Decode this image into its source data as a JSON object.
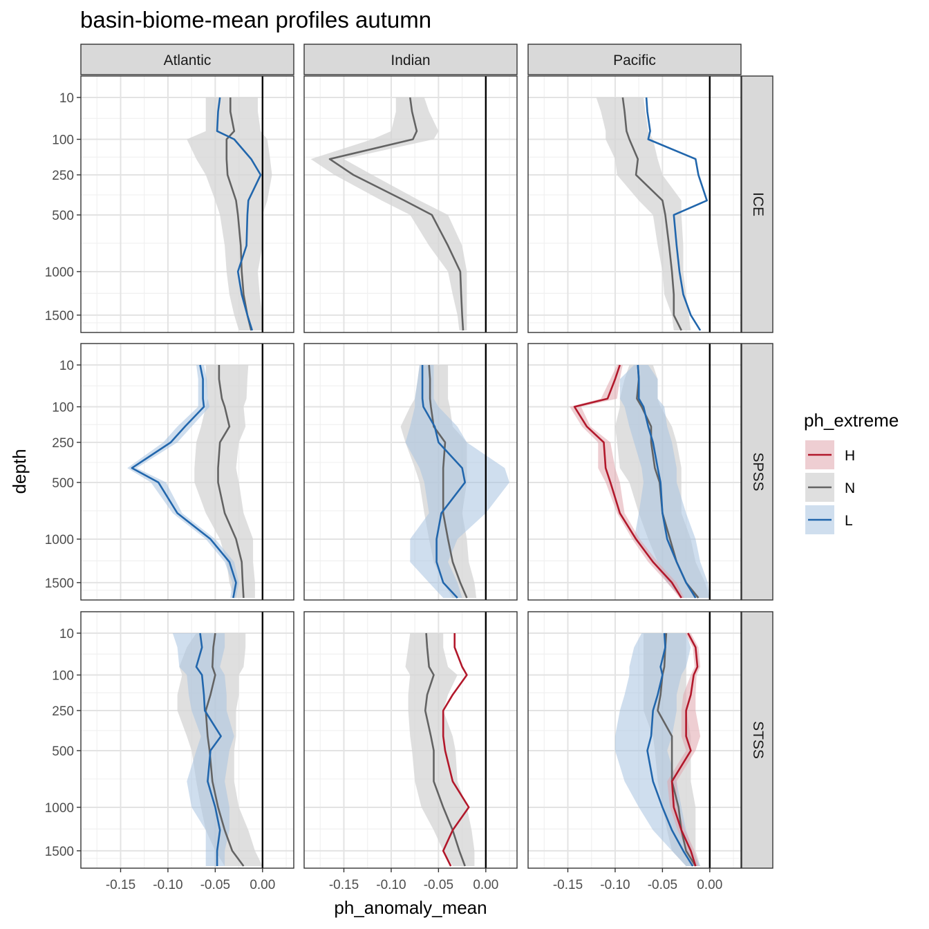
{
  "chart_data": {
    "type": "line",
    "title": "basin-biome-mean profiles autumn",
    "xlabel": "ph_anomaly_mean",
    "ylabel": "depth",
    "y_scale": "reversed-sqrt",
    "ylim": [
      0,
      1700
    ],
    "xlim": [
      -0.192,
      0.033
    ],
    "x_ticks": [
      -0.15,
      -0.1,
      -0.05,
      0.0
    ],
    "x_tick_labels": [
      "-0.15",
      "-0.10",
      "-0.05",
      "0.00"
    ],
    "y_ticks": [
      10,
      100,
      250,
      500,
      1000,
      1500
    ],
    "y_tick_labels": [
      "10",
      "100",
      "250",
      "500",
      "1000",
      "1500"
    ],
    "reference_line_x": 0,
    "columns": [
      "Atlantic",
      "Indian",
      "Pacific"
    ],
    "rows": [
      "ICE",
      "SPSS",
      "STSS"
    ],
    "legend": {
      "title": "ph_extreme",
      "position": "right",
      "items": [
        {
          "key": "H",
          "label": "H",
          "color": "#b2182b"
        },
        {
          "key": "N",
          "label": "N",
          "color": "#636363"
        },
        {
          "key": "L",
          "label": "L",
          "color": "#2166ac"
        }
      ]
    },
    "ribbon_colors": {
      "H": "#e0a6ad",
      "N": "#d4d4d4",
      "L": "#a8c3e0"
    },
    "depths": [
      10,
      30,
      75,
      100,
      175,
      250,
      400,
      500,
      750,
      1000,
      1250,
      1500,
      1700
    ],
    "panels": [
      {
        "col": "Atlantic",
        "row": "ICE",
        "series": [
          {
            "key": "N",
            "values": [
              -0.034,
              -0.034,
              -0.03,
              -0.038,
              -0.038,
              -0.037,
              -0.028,
              -0.026,
              -0.023,
              -0.022,
              -0.02,
              -0.016,
              -0.012
            ],
            "lower": [
              -0.06,
              -0.06,
              -0.06,
              -0.08,
              -0.07,
              -0.06,
              -0.05,
              -0.045,
              -0.04,
              -0.038,
              -0.035,
              -0.03,
              -0.025
            ],
            "upper": [
              -0.005,
              -0.005,
              -0.002,
              0.005,
              0.008,
              0.01,
              0.005,
              0.0,
              0.0,
              -0.005,
              -0.003,
              0.0,
              0.0
            ]
          },
          {
            "key": "L",
            "values": [
              -0.045,
              -0.047,
              -0.048,
              -0.03,
              -0.012,
              -0.002,
              -0.015,
              -0.016,
              -0.017,
              -0.026,
              -0.022,
              -0.016,
              -0.011
            ]
          }
        ]
      },
      {
        "col": "Indian",
        "row": "ICE",
        "series": [
          {
            "key": "N",
            "values": [
              -0.08,
              -0.078,
              -0.073,
              -0.077,
              -0.165,
              -0.14,
              -0.086,
              -0.057,
              -0.04,
              -0.027,
              -0.026,
              -0.025,
              -0.024
            ],
            "lower": [
              -0.095,
              -0.095,
              -0.1,
              -0.12,
              -0.185,
              -0.16,
              -0.11,
              -0.08,
              -0.06,
              -0.04,
              -0.035,
              -0.03,
              -0.028
            ],
            "upper": [
              -0.065,
              -0.06,
              -0.05,
              -0.055,
              -0.15,
              -0.12,
              -0.07,
              -0.04,
              -0.025,
              -0.02,
              -0.02,
              -0.02,
              -0.02
            ]
          }
        ]
      },
      {
        "col": "Pacific",
        "row": "ICE",
        "series": [
          {
            "key": "N",
            "values": [
              -0.092,
              -0.09,
              -0.088,
              -0.085,
              -0.076,
              -0.078,
              -0.05,
              -0.047,
              -0.043,
              -0.04,
              -0.038,
              -0.038,
              -0.03
            ],
            "lower": [
              -0.12,
              -0.115,
              -0.11,
              -0.11,
              -0.1,
              -0.098,
              -0.075,
              -0.06,
              -0.055,
              -0.05,
              -0.048,
              -0.04,
              -0.038
            ],
            "upper": [
              -0.07,
              -0.068,
              -0.065,
              -0.06,
              -0.055,
              -0.05,
              -0.03,
              -0.03,
              -0.028,
              -0.028,
              -0.025,
              -0.022,
              -0.02
            ]
          },
          {
            "key": "L",
            "values": [
              -0.067,
              -0.066,
              -0.063,
              -0.065,
              -0.015,
              -0.012,
              -0.003,
              -0.038,
              -0.035,
              -0.032,
              -0.028,
              -0.02,
              -0.01
            ]
          }
        ]
      },
      {
        "col": "Atlantic",
        "row": "SPSS",
        "series": [
          {
            "key": "N",
            "values": [
              -0.046,
              -0.046,
              -0.043,
              -0.04,
              -0.035,
              -0.045,
              -0.047,
              -0.047,
              -0.04,
              -0.028,
              -0.022,
              -0.021,
              -0.02
            ],
            "lower": [
              -0.06,
              -0.06,
              -0.058,
              -0.06,
              -0.065,
              -0.07,
              -0.072,
              -0.072,
              -0.06,
              -0.045,
              -0.038,
              -0.035,
              -0.03
            ],
            "upper": [
              -0.015,
              -0.016,
              -0.017,
              -0.02,
              -0.018,
              -0.025,
              -0.028,
              -0.025,
              -0.02,
              -0.01,
              -0.01,
              -0.008,
              -0.008
            ]
          },
          {
            "key": "L",
            "values": [
              -0.066,
              -0.063,
              -0.063,
              -0.062,
              -0.082,
              -0.097,
              -0.138,
              -0.11,
              -0.09,
              -0.055,
              -0.035,
              -0.028,
              -0.031
            ],
            "lower": [
              -0.07,
              -0.068,
              -0.068,
              -0.068,
              -0.09,
              -0.105,
              -0.143,
              -0.118,
              -0.095,
              -0.06,
              -0.04,
              -0.032,
              -0.034
            ],
            "upper": [
              -0.062,
              -0.059,
              -0.058,
              -0.056,
              -0.075,
              -0.09,
              -0.133,
              -0.102,
              -0.085,
              -0.05,
              -0.03,
              -0.025,
              -0.028
            ]
          }
        ]
      },
      {
        "col": "Indian",
        "row": "SPSS",
        "series": [
          {
            "key": "N",
            "values": [
              -0.06,
              -0.059,
              -0.059,
              -0.058,
              -0.055,
              -0.043,
              -0.045,
              -0.045,
              -0.045,
              -0.04,
              -0.035,
              -0.027,
              -0.02
            ],
            "lower": [
              -0.07,
              -0.072,
              -0.075,
              -0.08,
              -0.09,
              -0.085,
              -0.075,
              -0.07,
              -0.065,
              -0.06,
              -0.055,
              -0.045,
              -0.035
            ],
            "upper": [
              -0.04,
              -0.04,
              -0.04,
              -0.038,
              -0.035,
              -0.02,
              -0.02,
              -0.02,
              -0.025,
              -0.02,
              -0.018,
              -0.012,
              -0.01
            ]
          },
          {
            "key": "L",
            "values": [
              -0.067,
              -0.067,
              -0.067,
              -0.066,
              -0.054,
              -0.05,
              -0.025,
              -0.022,
              -0.047,
              -0.052,
              -0.052,
              -0.045,
              -0.03
            ],
            "lower": [
              -0.07,
              -0.072,
              -0.075,
              -0.075,
              -0.08,
              -0.085,
              -0.07,
              -0.065,
              -0.06,
              -0.08,
              -0.08,
              -0.06,
              -0.045
            ],
            "upper": [
              -0.055,
              -0.055,
              -0.055,
              -0.05,
              -0.03,
              -0.02,
              0.02,
              0.025,
              0.0,
              -0.03,
              -0.04,
              -0.03,
              -0.025
            ]
          }
        ]
      },
      {
        "col": "Pacific",
        "row": "SPSS",
        "series": [
          {
            "key": "N",
            "values": [
              -0.076,
              -0.075,
              -0.077,
              -0.072,
              -0.062,
              -0.062,
              -0.058,
              -0.053,
              -0.05,
              -0.042,
              -0.035,
              -0.025,
              -0.012
            ],
            "lower": [
              -0.085,
              -0.09,
              -0.095,
              -0.095,
              -0.1,
              -0.098,
              -0.095,
              -0.085,
              -0.075,
              -0.065,
              -0.055,
              -0.045,
              -0.03
            ],
            "upper": [
              -0.06,
              -0.055,
              -0.055,
              -0.052,
              -0.04,
              -0.035,
              -0.03,
              -0.03,
              -0.03,
              -0.02,
              -0.015,
              -0.005,
              0.0
            ]
          },
          {
            "key": "L",
            "values": [
              -0.076,
              -0.075,
              -0.075,
              -0.07,
              -0.065,
              -0.06,
              -0.055,
              -0.052,
              -0.05,
              -0.045,
              -0.035,
              -0.025,
              -0.015
            ],
            "lower": [
              -0.08,
              -0.095,
              -0.095,
              -0.09,
              -0.085,
              -0.08,
              -0.072,
              -0.07,
              -0.075,
              -0.08,
              -0.06,
              -0.045,
              -0.03
            ],
            "upper": [
              -0.065,
              -0.055,
              -0.055,
              -0.048,
              -0.045,
              -0.04,
              -0.035,
              -0.035,
              -0.025,
              -0.015,
              -0.01,
              -0.002,
              0.0
            ]
          },
          {
            "key": "H",
            "values": [
              -0.095,
              -0.1,
              -0.108,
              -0.143,
              -0.13,
              -0.112,
              -0.11,
              -0.105,
              -0.095,
              -0.078,
              -0.06,
              -0.04,
              -0.03
            ],
            "lower": [
              -0.098,
              -0.105,
              -0.115,
              -0.148,
              -0.135,
              -0.118,
              -0.118,
              -0.11,
              -0.098,
              -0.082,
              -0.065,
              -0.045,
              -0.032
            ],
            "upper": [
              -0.092,
              -0.095,
              -0.098,
              -0.136,
              -0.126,
              -0.105,
              -0.1,
              -0.095,
              -0.09,
              -0.074,
              -0.055,
              -0.035,
              -0.027
            ]
          }
        ]
      },
      {
        "col": "Atlantic",
        "row": "STSS",
        "series": [
          {
            "key": "N",
            "values": [
              -0.05,
              -0.052,
              -0.053,
              -0.05,
              -0.055,
              -0.06,
              -0.058,
              -0.056,
              -0.053,
              -0.047,
              -0.04,
              -0.032,
              -0.02
            ],
            "lower": [
              -0.07,
              -0.08,
              -0.088,
              -0.085,
              -0.09,
              -0.09,
              -0.08,
              -0.075,
              -0.07,
              -0.065,
              -0.06,
              -0.05,
              -0.04
            ],
            "upper": [
              -0.018,
              -0.018,
              -0.02,
              -0.025,
              -0.025,
              -0.028,
              -0.028,
              -0.03,
              -0.03,
              -0.025,
              -0.015,
              -0.008,
              0.0
            ]
          },
          {
            "key": "L",
            "values": [
              -0.066,
              -0.064,
              -0.07,
              -0.064,
              -0.062,
              -0.061,
              -0.044,
              -0.055,
              -0.058,
              -0.05,
              -0.045,
              -0.048,
              -0.048
            ],
            "lower": [
              -0.095,
              -0.09,
              -0.088,
              -0.08,
              -0.078,
              -0.075,
              -0.065,
              -0.07,
              -0.08,
              -0.075,
              -0.06,
              -0.06,
              -0.06
            ],
            "upper": [
              -0.04,
              -0.04,
              -0.045,
              -0.04,
              -0.038,
              -0.038,
              -0.03,
              -0.035,
              -0.04,
              -0.035,
              -0.035,
              -0.04,
              -0.04
            ]
          }
        ]
      },
      {
        "col": "Indian",
        "row": "STSS",
        "series": [
          {
            "key": "N",
            "values": [
              -0.063,
              -0.062,
              -0.06,
              -0.055,
              -0.062,
              -0.064,
              -0.058,
              -0.055,
              -0.055,
              -0.045,
              -0.035,
              -0.028,
              -0.022
            ],
            "lower": [
              -0.08,
              -0.082,
              -0.085,
              -0.08,
              -0.082,
              -0.082,
              -0.08,
              -0.078,
              -0.075,
              -0.068,
              -0.055,
              -0.045,
              -0.035
            ],
            "upper": [
              -0.045,
              -0.045,
              -0.04,
              -0.03,
              -0.04,
              -0.045,
              -0.035,
              -0.032,
              -0.03,
              -0.02,
              -0.015,
              -0.012,
              -0.012
            ]
          },
          {
            "key": "H",
            "values": [
              -0.033,
              -0.033,
              -0.025,
              -0.02,
              -0.035,
              -0.045,
              -0.045,
              -0.043,
              -0.035,
              -0.018,
              -0.035,
              -0.045,
              -0.037
            ]
          }
        ]
      },
      {
        "col": "Pacific",
        "row": "STSS",
        "series": [
          {
            "key": "N",
            "values": [
              -0.046,
              -0.047,
              -0.048,
              -0.05,
              -0.052,
              -0.055,
              -0.04,
              -0.04,
              -0.04,
              -0.033,
              -0.03,
              -0.025,
              -0.015
            ],
            "lower": [
              -0.07,
              -0.07,
              -0.07,
              -0.07,
              -0.07,
              -0.07,
              -0.06,
              -0.058,
              -0.055,
              -0.05,
              -0.045,
              -0.04,
              -0.025
            ],
            "upper": [
              -0.025,
              -0.025,
              -0.025,
              -0.025,
              -0.025,
              -0.025,
              -0.02,
              -0.02,
              -0.02,
              -0.015,
              -0.015,
              -0.015,
              -0.01
            ]
          },
          {
            "key": "L",
            "values": [
              -0.048,
              -0.047,
              -0.052,
              -0.05,
              -0.055,
              -0.06,
              -0.062,
              -0.066,
              -0.06,
              -0.05,
              -0.04,
              -0.028,
              -0.018
            ],
            "lower": [
              -0.072,
              -0.08,
              -0.085,
              -0.085,
              -0.09,
              -0.095,
              -0.1,
              -0.1,
              -0.09,
              -0.075,
              -0.06,
              -0.04,
              -0.025
            ],
            "upper": [
              -0.025,
              -0.02,
              -0.025,
              -0.03,
              -0.035,
              -0.035,
              -0.04,
              -0.045,
              -0.035,
              -0.03,
              -0.025,
              -0.018,
              -0.01
            ]
          },
          {
            "key": "H",
            "values": [
              -0.023,
              -0.015,
              -0.013,
              -0.017,
              -0.02,
              -0.025,
              -0.025,
              -0.02,
              -0.04,
              -0.038,
              -0.03,
              -0.02,
              -0.015
            ],
            "lower": [
              -0.026,
              -0.018,
              -0.016,
              -0.02,
              -0.028,
              -0.03,
              -0.03,
              -0.025,
              -0.045,
              -0.042,
              -0.034,
              -0.024,
              -0.018
            ],
            "upper": [
              -0.02,
              -0.012,
              -0.01,
              -0.014,
              -0.015,
              -0.015,
              -0.01,
              -0.015,
              -0.035,
              -0.034,
              -0.026,
              -0.016,
              -0.012
            ]
          }
        ]
      }
    ]
  }
}
